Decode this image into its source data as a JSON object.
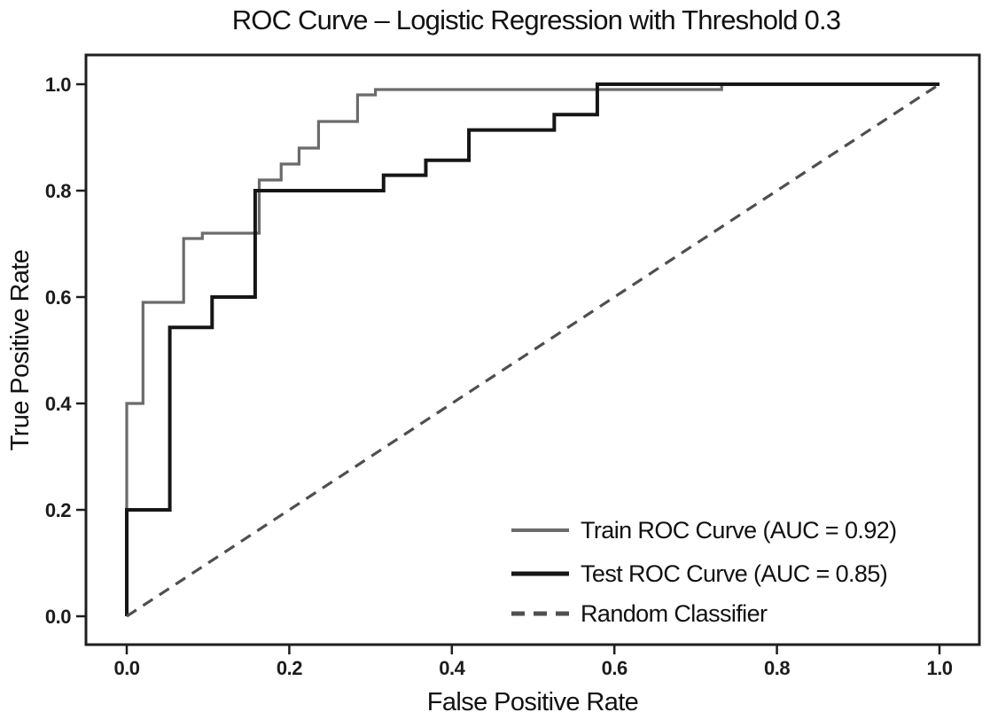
{
  "chart_data": {
    "type": "line",
    "title": "ROC Curve – Logistic Regression with Threshold 0.3",
    "xlabel": "False Positive Rate",
    "ylabel": "True Positive Rate",
    "xlim": [
      -0.05,
      1.05
    ],
    "ylim": [
      -0.05,
      1.05
    ],
    "x_ticks": [
      "0.0",
      "0.2",
      "0.4",
      "0.6",
      "0.8",
      "1.0"
    ],
    "y_ticks": [
      "0.0",
      "0.2",
      "0.4",
      "0.6",
      "0.8",
      "1.0"
    ],
    "grid": false,
    "legend_position": "lower right",
    "series": [
      {
        "name": "Train ROC Curve (AUC = 0.92)",
        "auc": 0.92,
        "style": "solid",
        "color": "#6b6b6b",
        "width": 3.2,
        "x": [
          0,
          0,
          0.02,
          0.02,
          0.07,
          0.07,
          0.093,
          0.093,
          0.163,
          0.163,
          0.19,
          0.19,
          0.212,
          0.212,
          0.236,
          0.236,
          0.284,
          0.284,
          0.306,
          0.306,
          0.732,
          0.732,
          1.0
        ],
        "y": [
          0,
          0.4,
          0.4,
          0.59,
          0.59,
          0.71,
          0.71,
          0.72,
          0.72,
          0.82,
          0.82,
          0.85,
          0.85,
          0.88,
          0.88,
          0.93,
          0.93,
          0.98,
          0.98,
          0.99,
          0.99,
          1.0,
          1.0
        ]
      },
      {
        "name": "Test ROC Curve (AUC = 0.85)",
        "auc": 0.85,
        "style": "solid",
        "color": "#161616",
        "width": 4,
        "x": [
          0,
          0,
          0.053,
          0.053,
          0.105,
          0.105,
          0.158,
          0.158,
          0.316,
          0.316,
          0.368,
          0.368,
          0.421,
          0.421,
          0.526,
          0.526,
          0.579,
          0.579,
          1.0
        ],
        "y": [
          0,
          0.2,
          0.2,
          0.543,
          0.543,
          0.6,
          0.6,
          0.8,
          0.8,
          0.829,
          0.829,
          0.857,
          0.857,
          0.914,
          0.914,
          0.943,
          0.943,
          1.0,
          1.0
        ]
      },
      {
        "name": "Random Classifier",
        "style": "dashed",
        "color": "#4f4f4f",
        "width": 3.2,
        "x": [
          0,
          1
        ],
        "y": [
          0,
          1
        ]
      }
    ]
  }
}
